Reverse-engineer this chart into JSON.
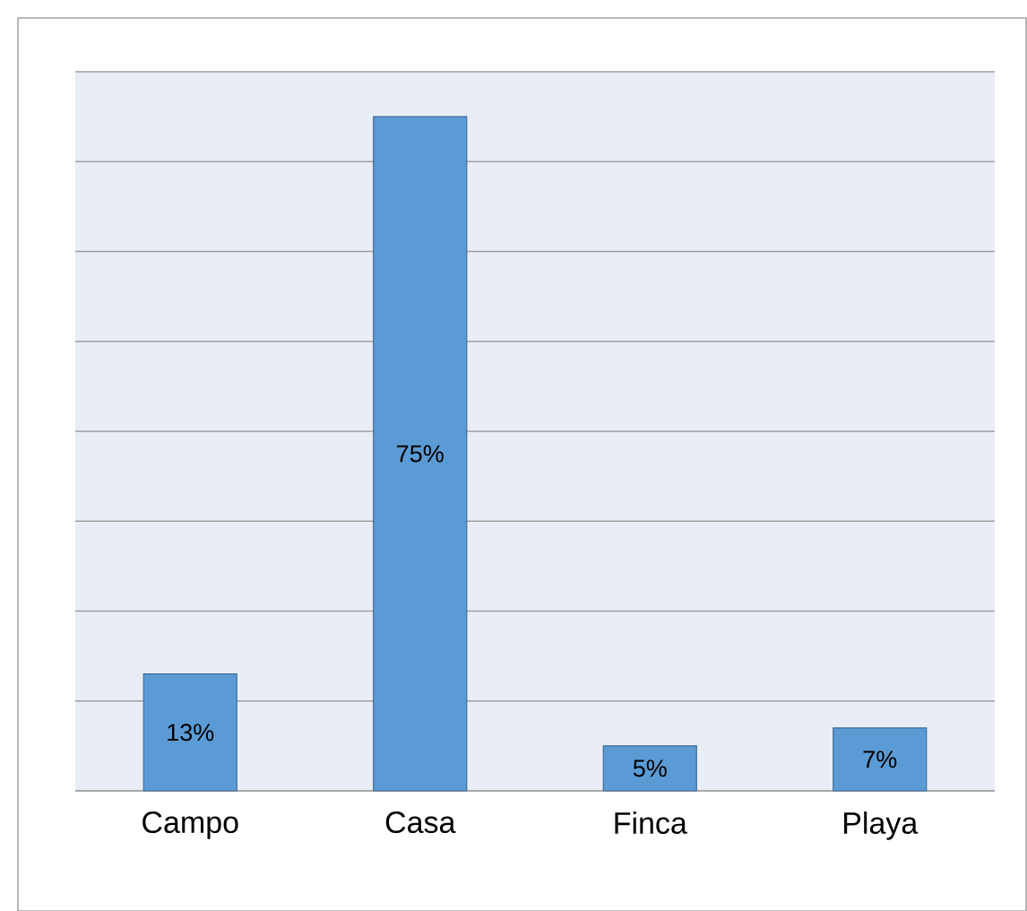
{
  "chart_data": {
    "type": "bar",
    "categories": [
      "Campo",
      "Casa",
      "Finca",
      "Playa"
    ],
    "values": [
      13,
      75,
      5,
      7
    ],
    "value_labels": [
      "13%",
      "75%",
      "5%",
      "7%"
    ],
    "color": "#5b9bd5",
    "ylim": [
      0,
      80
    ],
    "yticks": [
      {
        "value": 0,
        "label": null
      },
      {
        "value": 10,
        "label": null
      },
      {
        "value": 20,
        "label": null
      },
      {
        "value": 30,
        "label": null
      },
      {
        "value": 40,
        "label": null
      },
      {
        "value": 50,
        "label": null
      },
      {
        "value": 60,
        "label": null
      },
      {
        "value": 70,
        "label": null
      },
      {
        "value": 80,
        "label": null
      }
    ],
    "grid": "y",
    "tick_labels": "x"
  }
}
